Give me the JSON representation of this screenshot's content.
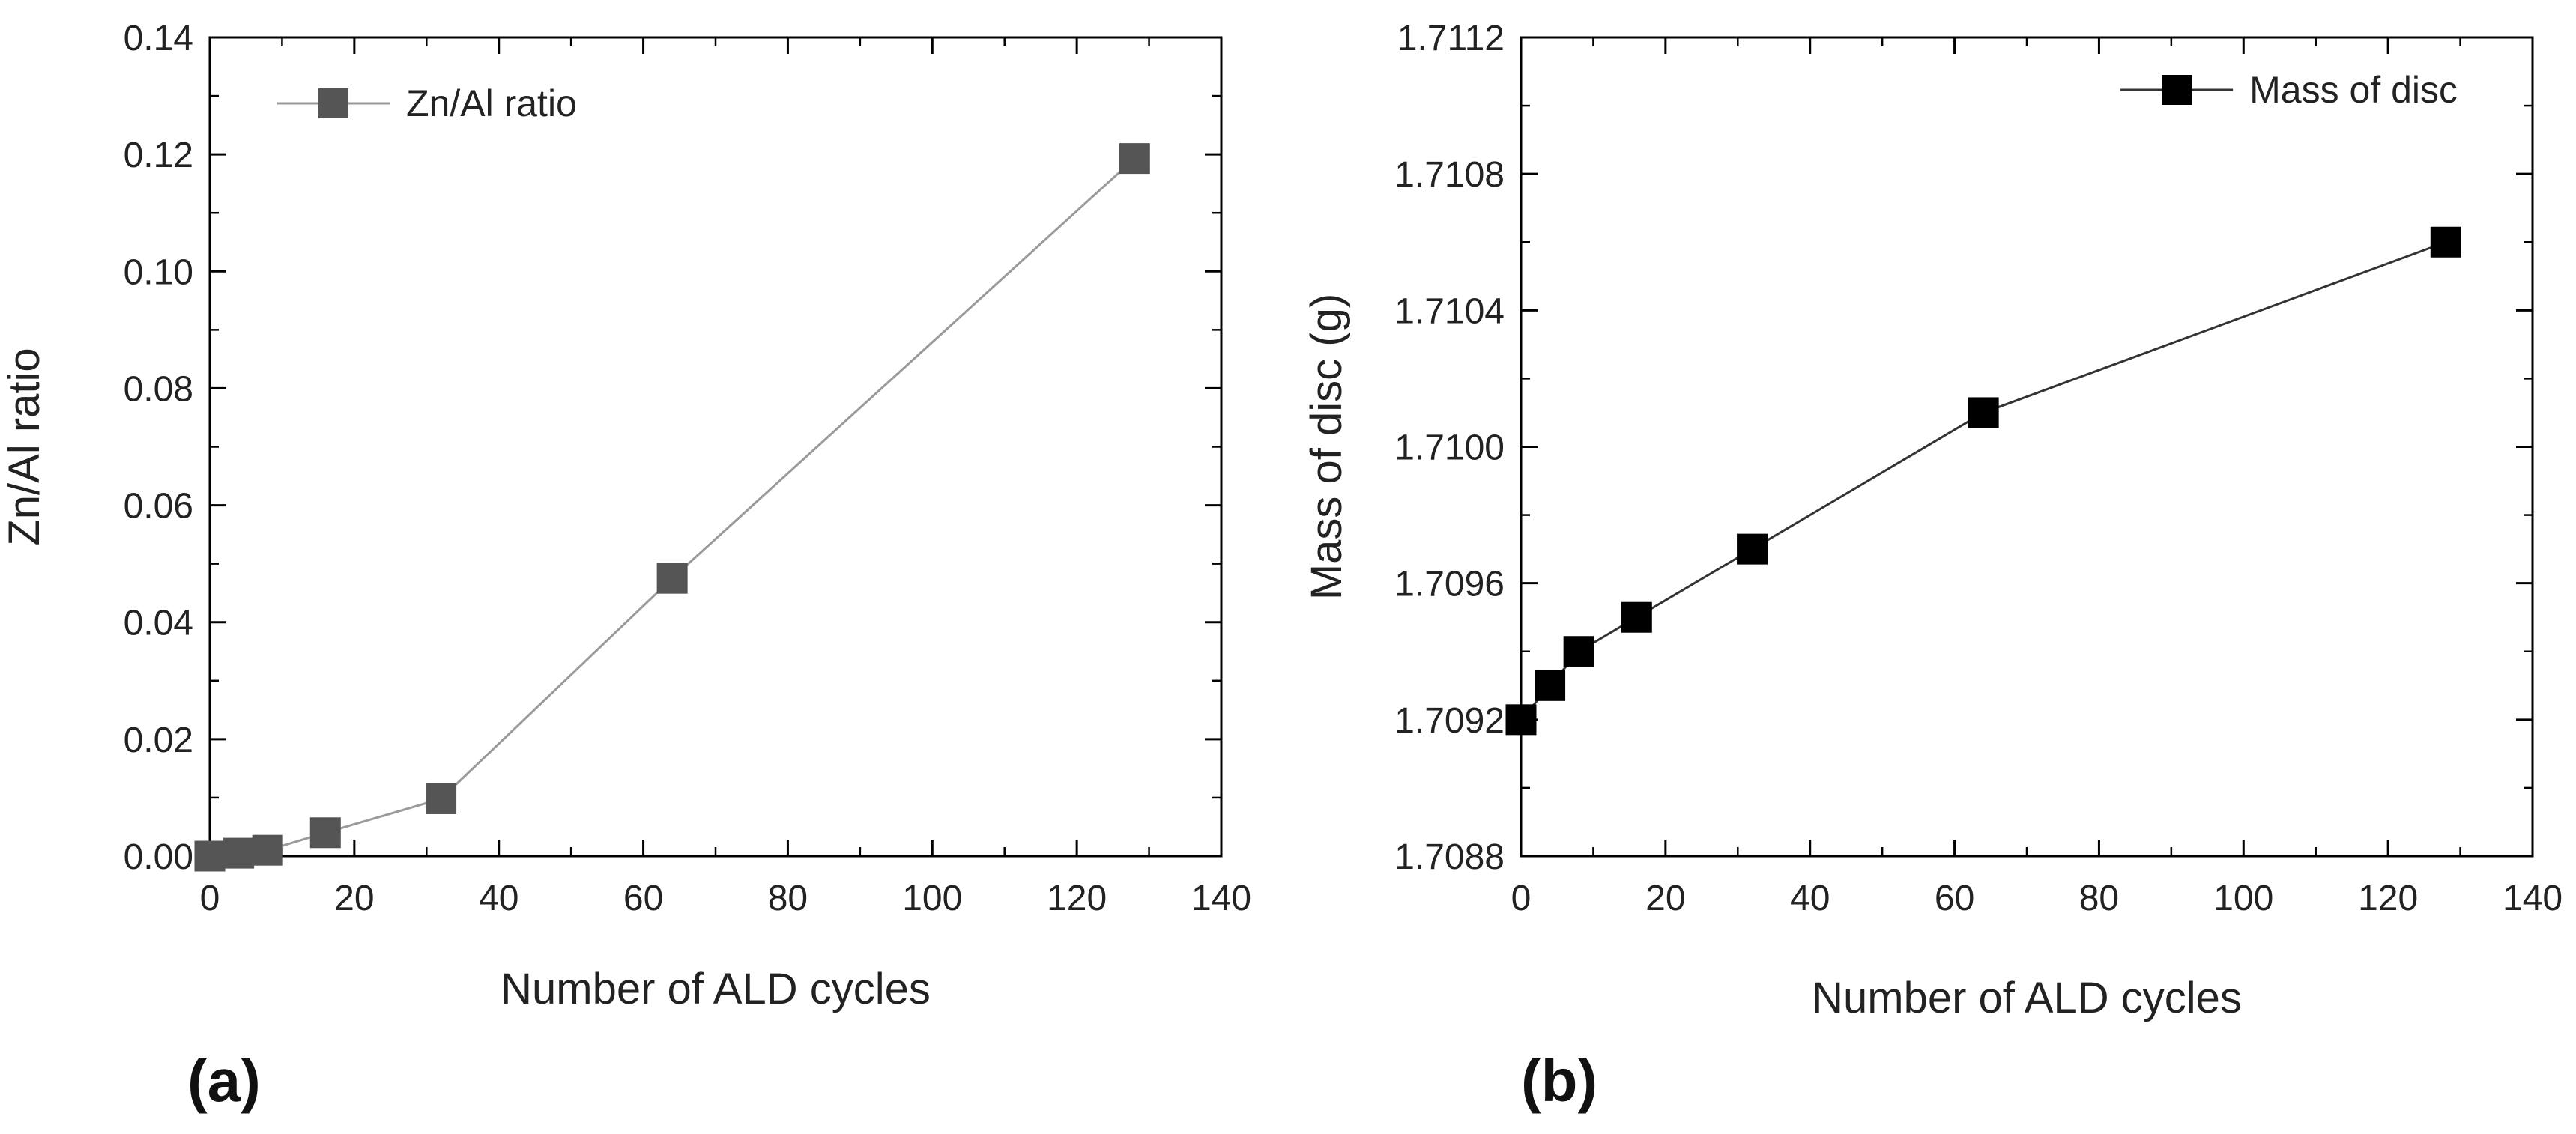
{
  "chart_data": [
    {
      "type": "line",
      "panel_label": "(a)",
      "xlabel": "Number of ALD cycles",
      "ylabel": "Zn/Al ratio",
      "xlim": [
        0,
        140
      ],
      "ylim": [
        0,
        0.14
      ],
      "x_ticks": [
        "0",
        "20",
        "40",
        "60",
        "80",
        "100",
        "120",
        "140"
      ],
      "y_ticks": [
        "0.00",
        "0.02",
        "0.04",
        "0.06",
        "0.08",
        "0.10",
        "0.12",
        "0.14"
      ],
      "legend_placement": "top-left",
      "color": "#555555",
      "line_color": "#9a9a9a",
      "series": [
        {
          "name": "Zn/Al ratio",
          "x": [
            0,
            4,
            8,
            16,
            32,
            64,
            128
          ],
          "y": [
            0.0,
            0.0005,
            0.001,
            0.004,
            0.0098,
            0.0475,
            0.1193
          ]
        }
      ]
    },
    {
      "type": "line",
      "panel_label": "(b)",
      "xlabel": "Number of ALD cycles",
      "ylabel": "Mass of disc (g)",
      "xlim": [
        0,
        140
      ],
      "ylim": [
        1.7088,
        1.7112
      ],
      "x_ticks": [
        "0",
        "20",
        "40",
        "60",
        "80",
        "100",
        "120",
        "140"
      ],
      "y_ticks": [
        "1.7088",
        "1.7092",
        "1.7096",
        "1.7100",
        "1.7104",
        "1.7108",
        "1.7112"
      ],
      "legend_placement": "top-right",
      "color": "#000000",
      "line_color": "#333333",
      "series": [
        {
          "name": "Mass of disc",
          "x": [
            0,
            4,
            8,
            16,
            32,
            64,
            128
          ],
          "y": [
            1.7092,
            1.7093,
            1.7094,
            1.7095,
            1.7097,
            1.7101,
            1.7106
          ]
        }
      ]
    }
  ]
}
